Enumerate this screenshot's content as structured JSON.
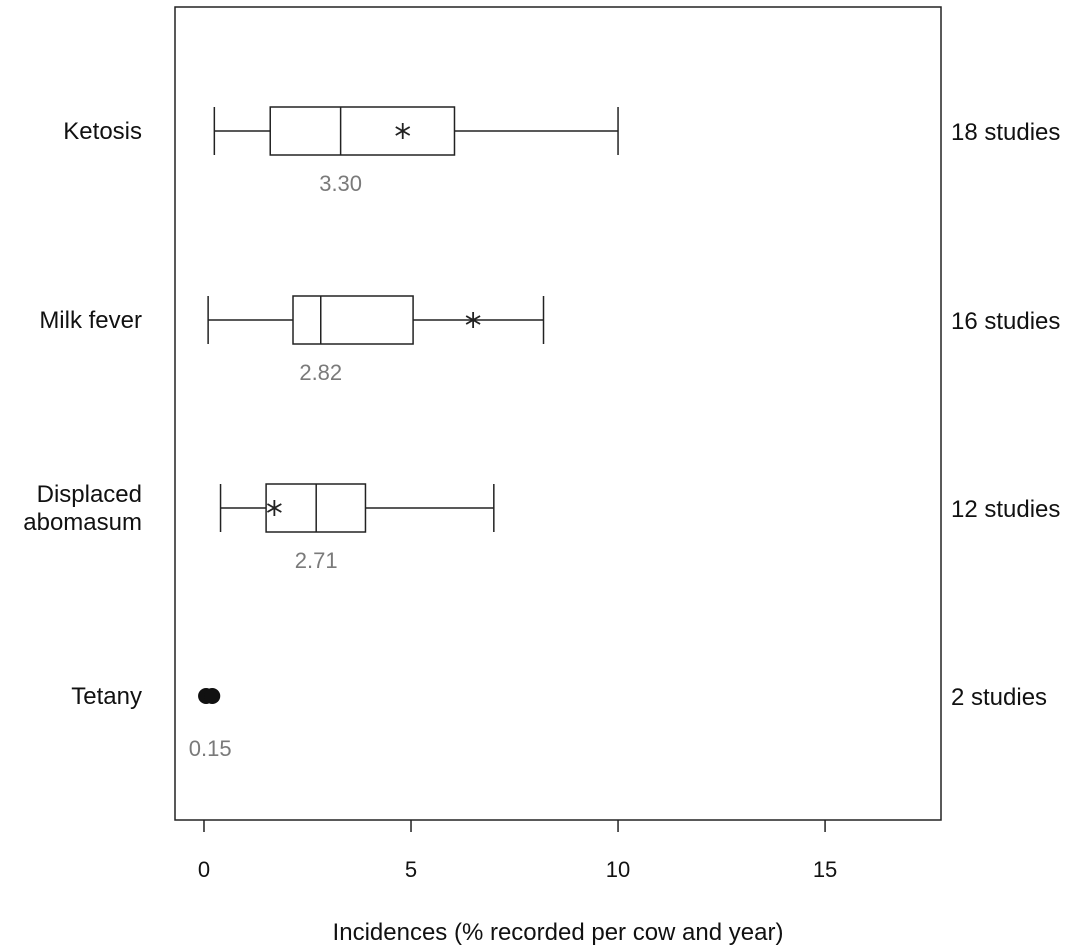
{
  "chart_data": {
    "type": "box",
    "xlabel": "Incidences (% recorded per cow and year)",
    "xlim": [
      -0.7,
      17.8
    ],
    "xticks": [
      0,
      5,
      10,
      15
    ],
    "xtick_labels": [
      "0",
      "5",
      "10",
      "15"
    ],
    "grid": false,
    "mean_marker": "asterisk",
    "series": [
      {
        "name": "Ketosis",
        "label_lines": [
          "Ketosis"
        ],
        "studies": "18 studies",
        "whisker_low": 0.25,
        "q1": 1.6,
        "median": 3.3,
        "q3": 6.05,
        "whisker_high": 10.0,
        "mean": 4.8,
        "median_label": "3.30",
        "points": []
      },
      {
        "name": "Milk fever",
        "label_lines": [
          "Milk fever"
        ],
        "studies": "16 studies",
        "whisker_low": 0.1,
        "q1": 2.15,
        "median": 2.82,
        "q3": 5.05,
        "whisker_high": 8.2,
        "mean": 6.5,
        "median_label": "2.82",
        "points": []
      },
      {
        "name": "Displaced abomasum",
        "label_lines": [
          "Displaced",
          "abomasum"
        ],
        "studies": "12 studies",
        "whisker_low": 0.4,
        "q1": 1.5,
        "median": 2.71,
        "q3": 3.9,
        "whisker_high": 7.0,
        "mean": 1.7,
        "median_label": "2.71",
        "points": []
      },
      {
        "name": "Tetany",
        "label_lines": [
          "Tetany"
        ],
        "studies": "2 studies",
        "whisker_low": null,
        "q1": null,
        "median": 0.15,
        "q3": null,
        "whisker_high": null,
        "mean": null,
        "median_label": "0.15",
        "points": [
          0.05,
          0.2
        ]
      }
    ]
  }
}
